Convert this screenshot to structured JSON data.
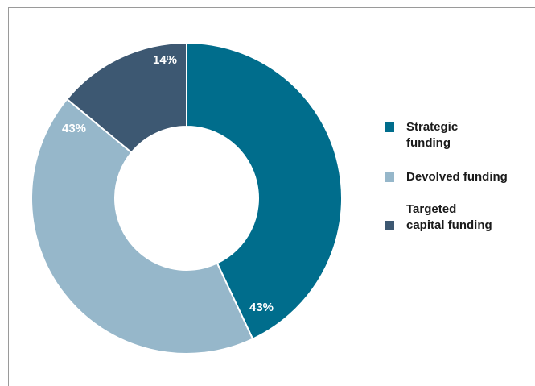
{
  "chart_data": {
    "type": "pie",
    "donut": true,
    "title": "",
    "slices": [
      {
        "label": "Strategic funding",
        "value": 43,
        "display": "43%",
        "color": "#006d8c"
      },
      {
        "label": "Devolved funding",
        "value": 43,
        "display": "43%",
        "color": "#96b7ca"
      },
      {
        "label": "Targeted capital funding",
        "value": 14,
        "display": "14%",
        "color": "#3d5872"
      }
    ],
    "legend": {
      "position": "right",
      "items": [
        {
          "label": "Strategic funding",
          "color": "#006d8c"
        },
        {
          "label": "Devolved funding",
          "color": "#96b7ca"
        },
        {
          "label": "Targeted capital funding",
          "color": "#3d5872"
        }
      ]
    }
  }
}
